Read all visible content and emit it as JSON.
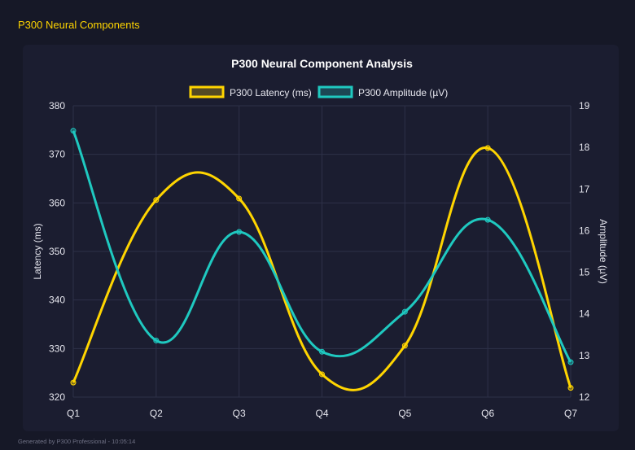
{
  "header": {
    "title": "P300 Neural Components"
  },
  "footer": {
    "text": "Generated by P300 Professional - 10:05:14"
  },
  "chart_data": {
    "type": "line",
    "title": "P300 Neural Component Analysis",
    "categories": [
      "Q1",
      "Q2",
      "Q3",
      "Q4",
      "Q5",
      "Q6",
      "Q7"
    ],
    "series": [
      {
        "name": "P300 Latency (ms)",
        "axis": "left",
        "color": "#ffd500",
        "values": [
          323.0,
          360.6,
          360.9,
          324.7,
          330.6,
          371.3,
          321.9
        ]
      },
      {
        "name": "P300 Amplitude (µV)",
        "axis": "right",
        "color": "#1fc9c0",
        "values": [
          18.4,
          13.36,
          15.97,
          13.09,
          14.05,
          16.26,
          12.84
        ]
      }
    ],
    "ylabel": "Latency (ms)",
    "ylim": [
      320,
      380
    ],
    "yticks": [
      320,
      330,
      340,
      350,
      360,
      370,
      380
    ],
    "y2label": "Amplitude (µV)",
    "y2lim": [
      12,
      19
    ],
    "y2ticks": [
      12,
      13,
      14,
      15,
      16,
      17,
      18,
      19
    ],
    "grid": true,
    "legend": "top"
  }
}
